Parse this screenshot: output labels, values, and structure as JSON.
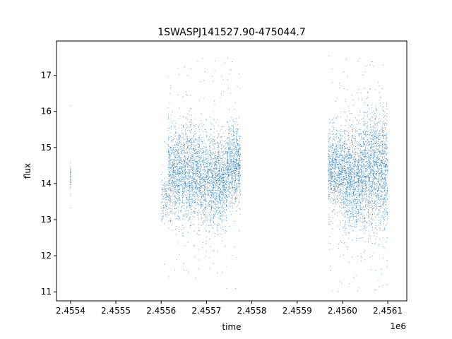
{
  "chart_data": {
    "type": "scatter",
    "title": "1SWASPJ141527.90-475044.7",
    "xlabel": "time",
    "ylabel": "flux",
    "x_offset_label": "1e6",
    "xlim": [
      2455369,
      2456142
    ],
    "ylim": [
      10.75,
      17.95
    ],
    "x_ticks": [
      2455400,
      2455500,
      2455600,
      2455700,
      2455800,
      2455900,
      2456000,
      2456100
    ],
    "x_tick_labels": [
      "2.4554",
      "2.4555",
      "2.4556",
      "2.4557",
      "2.4558",
      "2.4559",
      "2.4560",
      "2.4561"
    ],
    "y_ticks": [
      11,
      12,
      13,
      14,
      15,
      16,
      17
    ],
    "y_tick_labels": [
      "11",
      "12",
      "13",
      "14",
      "15",
      "16",
      "17"
    ],
    "grid": false,
    "marker_color": "#1f77b4",
    "series": [
      {
        "segments": [
          {
            "x_range": [
              2455399.5,
              2455400.5
            ],
            "center": 14.3,
            "amp": 0.2,
            "spread": 0.25,
            "count": 40
          },
          {
            "x_range": [
              2455600,
              2455615
            ],
            "center": 13.6,
            "amp": 0.2,
            "spread": 0.3,
            "count": 120
          },
          {
            "x_range": [
              2455615,
              2455680
            ],
            "center": 14.3,
            "amp": 0.9,
            "spread": 0.5,
            "count": 1600
          },
          {
            "x_range": [
              2455680,
              2455745
            ],
            "center": 14.1,
            "amp": 0.8,
            "spread": 0.5,
            "count": 1600
          },
          {
            "x_range": [
              2455745,
              2455775
            ],
            "center": 14.5,
            "amp": 0.6,
            "spread": 0.45,
            "count": 800
          },
          {
            "x_range": [
              2455968,
              2456000
            ],
            "center": 14.4,
            "amp": 0.7,
            "spread": 0.45,
            "count": 800
          },
          {
            "x_range": [
              2456000,
              2456045
            ],
            "center": 14.2,
            "amp": 0.9,
            "spread": 0.55,
            "count": 1300
          },
          {
            "x_range": [
              2456045,
              2456100
            ],
            "center": 14.4,
            "amp": 1.0,
            "spread": 0.65,
            "count": 1600
          }
        ],
        "outlier_fraction": 0.04,
        "outlier_range": [
          11.0,
          17.6
        ]
      }
    ]
  }
}
